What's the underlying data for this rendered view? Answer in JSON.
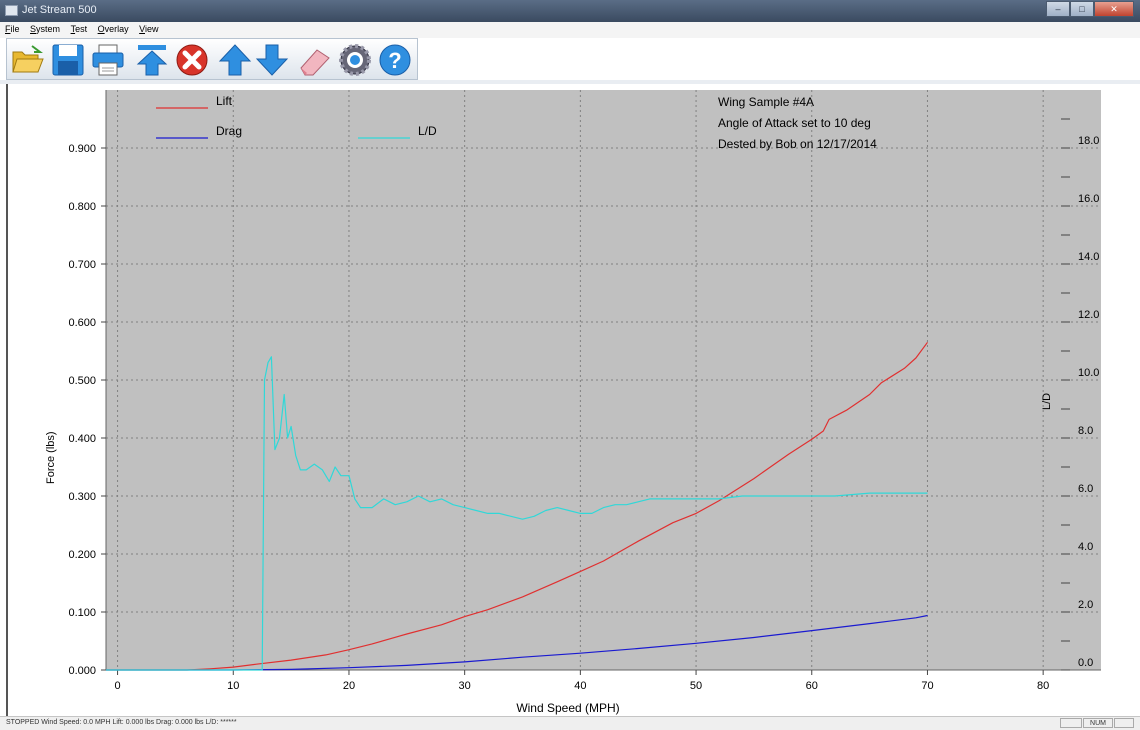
{
  "window": {
    "title": "Jet Stream 500",
    "min_glyph": "–",
    "max_glyph": "□",
    "close_glyph": "✕"
  },
  "menu": {
    "items": [
      {
        "key": "F",
        "rest": "ile"
      },
      {
        "key": "S",
        "rest": "ystem"
      },
      {
        "key": "T",
        "rest": "est"
      },
      {
        "key": "O",
        "rest": "verlay"
      },
      {
        "key": "V",
        "rest": "iew"
      }
    ]
  },
  "toolbar": {
    "buttons": [
      {
        "name": "open-folder-icon",
        "icon": "folder"
      },
      {
        "name": "save-icon",
        "icon": "floppy"
      },
      {
        "name": "print-icon",
        "icon": "printer"
      },
      {
        "name": "move-to-top-icon",
        "icon": "up-bar"
      },
      {
        "name": "stop-icon",
        "icon": "stop"
      },
      {
        "name": "arrow-up-icon",
        "icon": "up"
      },
      {
        "name": "arrow-down-icon",
        "icon": "down"
      },
      {
        "name": "eraser-icon",
        "icon": "eraser"
      },
      {
        "name": "settings-gear-icon",
        "icon": "gear"
      },
      {
        "name": "help-icon",
        "icon": "help"
      }
    ],
    "colors": {
      "folder": "#e8b830",
      "blue": "#2f8fe0",
      "red": "#d8342a",
      "gear": "#5577aa"
    }
  },
  "chart_data": {
    "type": "line",
    "plot_background": "#c0c0c0",
    "grid": true,
    "x_axis": {
      "label": "Wind Speed (MPH)",
      "min": -1,
      "max": 85,
      "ticks": [
        0,
        10,
        20,
        30,
        40,
        50,
        60,
        70,
        80
      ]
    },
    "y_axis_left": {
      "label": "Force (lbs)",
      "min": 0,
      "max": 1.0,
      "ticks": [
        "0.000",
        "0.100",
        "0.200",
        "0.300",
        "0.400",
        "0.500",
        "0.600",
        "0.700",
        "0.800",
        "0.900"
      ]
    },
    "y_axis_right": {
      "label": "L/D",
      "min": 0,
      "max": 20,
      "ticks": [
        "0.0",
        "2.0",
        "4.0",
        "6.0",
        "8.0",
        "10.0",
        "12.0",
        "14.0",
        "16.0",
        "18.0"
      ]
    },
    "legend": [
      {
        "name": "Lift",
        "color": "#e03030"
      },
      {
        "name": "Drag",
        "color": "#1a1ad0"
      },
      {
        "name": "L/D",
        "color": "#30d8d8"
      }
    ],
    "annotations": [
      "Wing Sample #4A",
      "Angle of Attack set to 10 deg",
      "Dested by Bob on 12/17/2014"
    ],
    "series": [
      {
        "name": "Lift",
        "axis": "left",
        "color": "#e03030",
        "x": [
          -1,
          6,
          8,
          10,
          12,
          15,
          18,
          20,
          22,
          25,
          28,
          30,
          32,
          35,
          38,
          40,
          42,
          45,
          48,
          50,
          52,
          55,
          58,
          60,
          61,
          61.5,
          63,
          65,
          66,
          68,
          69,
          70
        ],
        "y": [
          0,
          0,
          0.002,
          0.005,
          0.01,
          0.017,
          0.026,
          0.035,
          0.045,
          0.062,
          0.078,
          0.092,
          0.104,
          0.126,
          0.152,
          0.17,
          0.188,
          0.222,
          0.254,
          0.27,
          0.292,
          0.33,
          0.372,
          0.398,
          0.412,
          0.432,
          0.448,
          0.475,
          0.495,
          0.52,
          0.538,
          0.565
        ]
      },
      {
        "name": "Drag",
        "axis": "left",
        "color": "#1a1ad0",
        "x": [
          -1,
          10,
          15,
          20,
          25,
          30,
          35,
          40,
          45,
          50,
          55,
          60,
          65,
          69,
          70
        ],
        "y": [
          0,
          0,
          0.001,
          0.004,
          0.008,
          0.014,
          0.022,
          0.029,
          0.037,
          0.046,
          0.056,
          0.068,
          0.08,
          0.09,
          0.094
        ]
      },
      {
        "name": "L/D",
        "axis": "right",
        "color": "#30d8d8",
        "x": [
          -1,
          12.5,
          12.7,
          13.0,
          13.3,
          13.6,
          14.0,
          14.4,
          14.7,
          15.0,
          15.4,
          15.8,
          16.3,
          17.0,
          17.7,
          18.3,
          18.8,
          19.3,
          20.0,
          20.5,
          21.0,
          22.0,
          23.0,
          24.0,
          25.0,
          26.0,
          27.0,
          28.0,
          29.0,
          30.0,
          31.0,
          32.0,
          33.0,
          34.0,
          35.0,
          36.0,
          37.0,
          38.0,
          39.0,
          40.0,
          41.0,
          42.0,
          43.0,
          44.0,
          45.0,
          46.0,
          48.0,
          50.0,
          52.0,
          54.0,
          56.0,
          58.0,
          60.0,
          62.0,
          65.0,
          68.0,
          70.0
        ],
        "y": [
          0,
          0,
          10.0,
          10.6,
          10.8,
          7.6,
          8.0,
          9.5,
          8.0,
          8.4,
          7.4,
          6.9,
          6.9,
          7.1,
          6.9,
          6.5,
          7.0,
          6.7,
          6.7,
          5.9,
          5.6,
          5.6,
          5.9,
          5.7,
          5.8,
          6.0,
          5.8,
          5.9,
          5.7,
          5.6,
          5.5,
          5.4,
          5.4,
          5.3,
          5.2,
          5.3,
          5.5,
          5.6,
          5.5,
          5.4,
          5.4,
          5.6,
          5.7,
          5.7,
          5.8,
          5.9,
          5.9,
          5.9,
          5.9,
          6.0,
          6.0,
          6.0,
          6.0,
          6.0,
          6.1,
          6.1,
          6.1
        ]
      }
    ]
  },
  "status": {
    "text": "STOPPED   Wind Speed: 0.0 MPH   Lift: 0.000 lbs   Drag: 0.000 lbs   L/D: ******",
    "num_indicator": "NUM"
  }
}
